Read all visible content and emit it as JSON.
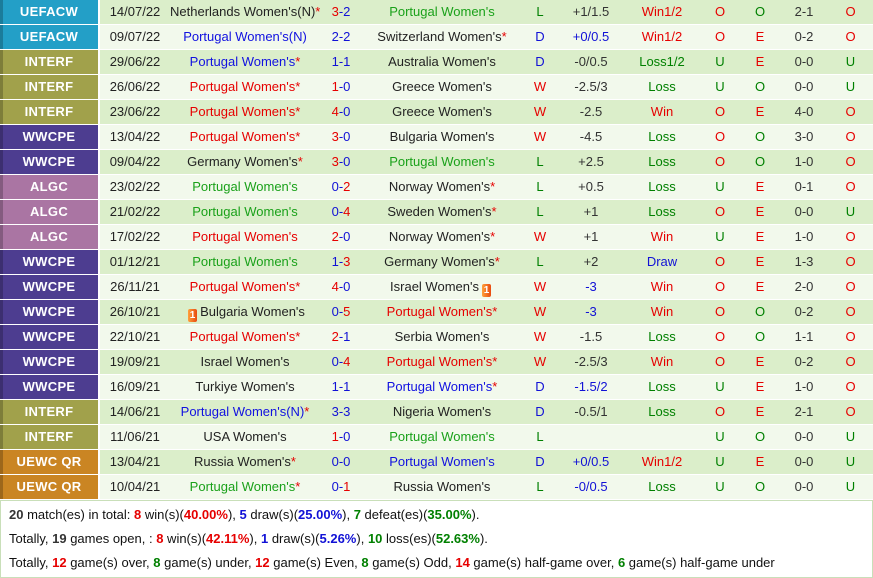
{
  "competitions": {
    "UEFACW": "#239fc7",
    "INTERF": "#a1a14b",
    "WWCPE": "#4d3d90",
    "ALGC": "#aa75a3",
    "UEWC QR": "#ca8523"
  },
  "accent_colors": {
    "win_red": "#e60000",
    "draw_blue": "#1111d6",
    "loss_green": "#008000"
  },
  "rows": [
    {
      "comp": "UEFACW",
      "date": "14/07/22",
      "home": {
        "name": "Netherlands Women's(N)",
        "star": true,
        "card": false,
        "color": "dark"
      },
      "fs": {
        "h": "3",
        "a": "2",
        "hc": "red",
        "ac": "blue"
      },
      "away": {
        "name": "Portugal Women's",
        "star": false,
        "card": false,
        "color": "green"
      },
      "wdl": {
        "t": "L",
        "c": "green"
      },
      "hcap": {
        "t": "+1/1.5",
        "c": "dark"
      },
      "hres": {
        "t": "Win1/2",
        "c": "red"
      },
      "ou": {
        "t": "O",
        "c": "red"
      },
      "oe": {
        "t": "O",
        "c": "green"
      },
      "ht": "2-1",
      "htou": {
        "t": "O",
        "c": "red"
      }
    },
    {
      "comp": "UEFACW",
      "date": "09/07/22",
      "home": {
        "name": "Portugal Women's(N)",
        "star": false,
        "card": false,
        "color": "blue"
      },
      "fs": {
        "h": "2",
        "a": "2",
        "hc": "blue",
        "ac": "blue"
      },
      "away": {
        "name": "Switzerland Women's",
        "star": true,
        "card": false,
        "color": "dark"
      },
      "wdl": {
        "t": "D",
        "c": "blue"
      },
      "hcap": {
        "t": "+0/0.5",
        "c": "blue"
      },
      "hres": {
        "t": "Win1/2",
        "c": "red"
      },
      "ou": {
        "t": "O",
        "c": "red"
      },
      "oe": {
        "t": "E",
        "c": "red"
      },
      "ht": "0-2",
      "htou": {
        "t": "O",
        "c": "red"
      }
    },
    {
      "comp": "INTERF",
      "date": "29/06/22",
      "home": {
        "name": "Portugal Women's",
        "star": true,
        "card": false,
        "color": "blue"
      },
      "fs": {
        "h": "1",
        "a": "1",
        "hc": "blue",
        "ac": "blue"
      },
      "away": {
        "name": "Australia Women's",
        "star": false,
        "card": false,
        "color": "dark"
      },
      "wdl": {
        "t": "D",
        "c": "blue"
      },
      "hcap": {
        "t": "-0/0.5",
        "c": "dark"
      },
      "hres": {
        "t": "Loss1/2",
        "c": "green"
      },
      "ou": {
        "t": "U",
        "c": "green"
      },
      "oe": {
        "t": "E",
        "c": "red"
      },
      "ht": "0-0",
      "htou": {
        "t": "U",
        "c": "green"
      }
    },
    {
      "comp": "INTERF",
      "date": "26/06/22",
      "home": {
        "name": "Portugal Women's",
        "star": true,
        "card": false,
        "color": "red"
      },
      "fs": {
        "h": "1",
        "a": "0",
        "hc": "red",
        "ac": "blue"
      },
      "away": {
        "name": "Greece Women's",
        "star": false,
        "card": false,
        "color": "dark"
      },
      "wdl": {
        "t": "W",
        "c": "red"
      },
      "hcap": {
        "t": "-2.5/3",
        "c": "dark"
      },
      "hres": {
        "t": "Loss",
        "c": "green"
      },
      "ou": {
        "t": "U",
        "c": "green"
      },
      "oe": {
        "t": "O",
        "c": "green"
      },
      "ht": "0-0",
      "htou": {
        "t": "U",
        "c": "green"
      }
    },
    {
      "comp": "INTERF",
      "date": "23/06/22",
      "home": {
        "name": "Portugal Women's",
        "star": true,
        "card": false,
        "color": "red"
      },
      "fs": {
        "h": "4",
        "a": "0",
        "hc": "red",
        "ac": "blue"
      },
      "away": {
        "name": "Greece Women's",
        "star": false,
        "card": false,
        "color": "dark"
      },
      "wdl": {
        "t": "W",
        "c": "red"
      },
      "hcap": {
        "t": "-2.5",
        "c": "dark"
      },
      "hres": {
        "t": "Win",
        "c": "red"
      },
      "ou": {
        "t": "O",
        "c": "red"
      },
      "oe": {
        "t": "E",
        "c": "red"
      },
      "ht": "4-0",
      "htou": {
        "t": "O",
        "c": "red"
      }
    },
    {
      "comp": "WWCPE",
      "date": "13/04/22",
      "home": {
        "name": "Portugal Women's",
        "star": true,
        "card": false,
        "color": "red"
      },
      "fs": {
        "h": "3",
        "a": "0",
        "hc": "red",
        "ac": "blue"
      },
      "away": {
        "name": "Bulgaria Women's",
        "star": false,
        "card": false,
        "color": "dark"
      },
      "wdl": {
        "t": "W",
        "c": "red"
      },
      "hcap": {
        "t": "-4.5",
        "c": "dark"
      },
      "hres": {
        "t": "Loss",
        "c": "green"
      },
      "ou": {
        "t": "O",
        "c": "red"
      },
      "oe": {
        "t": "O",
        "c": "green"
      },
      "ht": "3-0",
      "htou": {
        "t": "O",
        "c": "red"
      }
    },
    {
      "comp": "WWCPE",
      "date": "09/04/22",
      "home": {
        "name": "Germany Women's",
        "star": true,
        "card": false,
        "color": "dark"
      },
      "fs": {
        "h": "3",
        "a": "0",
        "hc": "red",
        "ac": "blue"
      },
      "away": {
        "name": "Portugal Women's",
        "star": false,
        "card": false,
        "color": "green"
      },
      "wdl": {
        "t": "L",
        "c": "green"
      },
      "hcap": {
        "t": "+2.5",
        "c": "dark"
      },
      "hres": {
        "t": "Loss",
        "c": "green"
      },
      "ou": {
        "t": "O",
        "c": "red"
      },
      "oe": {
        "t": "O",
        "c": "green"
      },
      "ht": "1-0",
      "htou": {
        "t": "O",
        "c": "red"
      }
    },
    {
      "comp": "ALGC",
      "date": "23/02/22",
      "home": {
        "name": "Portugal Women's",
        "star": false,
        "card": false,
        "color": "green"
      },
      "fs": {
        "h": "0",
        "a": "2",
        "hc": "blue",
        "ac": "red"
      },
      "away": {
        "name": "Norway Women's",
        "star": true,
        "card": false,
        "color": "dark"
      },
      "wdl": {
        "t": "L",
        "c": "green"
      },
      "hcap": {
        "t": "+0.5",
        "c": "dark"
      },
      "hres": {
        "t": "Loss",
        "c": "green"
      },
      "ou": {
        "t": "U",
        "c": "green"
      },
      "oe": {
        "t": "E",
        "c": "red"
      },
      "ht": "0-1",
      "htou": {
        "t": "O",
        "c": "red"
      }
    },
    {
      "comp": "ALGC",
      "date": "21/02/22",
      "home": {
        "name": "Portugal Women's",
        "star": false,
        "card": false,
        "color": "green"
      },
      "fs": {
        "h": "0",
        "a": "4",
        "hc": "blue",
        "ac": "red"
      },
      "away": {
        "name": "Sweden Women's",
        "star": true,
        "card": false,
        "color": "dark"
      },
      "wdl": {
        "t": "L",
        "c": "green"
      },
      "hcap": {
        "t": "+1",
        "c": "dark"
      },
      "hres": {
        "t": "Loss",
        "c": "green"
      },
      "ou": {
        "t": "O",
        "c": "red"
      },
      "oe": {
        "t": "E",
        "c": "red"
      },
      "ht": "0-0",
      "htou": {
        "t": "U",
        "c": "green"
      }
    },
    {
      "comp": "ALGC",
      "date": "17/02/22",
      "home": {
        "name": "Portugal Women's",
        "star": false,
        "card": false,
        "color": "red"
      },
      "fs": {
        "h": "2",
        "a": "0",
        "hc": "red",
        "ac": "blue"
      },
      "away": {
        "name": "Norway Women's",
        "star": true,
        "card": false,
        "color": "dark"
      },
      "wdl": {
        "t": "W",
        "c": "red"
      },
      "hcap": {
        "t": "+1",
        "c": "dark"
      },
      "hres": {
        "t": "Win",
        "c": "red"
      },
      "ou": {
        "t": "U",
        "c": "green"
      },
      "oe": {
        "t": "E",
        "c": "red"
      },
      "ht": "1-0",
      "htou": {
        "t": "O",
        "c": "red"
      }
    },
    {
      "comp": "WWCPE",
      "date": "01/12/21",
      "home": {
        "name": "Portugal Women's",
        "star": false,
        "card": false,
        "color": "green"
      },
      "fs": {
        "h": "1",
        "a": "3",
        "hc": "blue",
        "ac": "red"
      },
      "away": {
        "name": "Germany Women's",
        "star": true,
        "card": false,
        "color": "dark"
      },
      "wdl": {
        "t": "L",
        "c": "green"
      },
      "hcap": {
        "t": "+2",
        "c": "dark"
      },
      "hres": {
        "t": "Draw",
        "c": "blue"
      },
      "ou": {
        "t": "O",
        "c": "red"
      },
      "oe": {
        "t": "E",
        "c": "red"
      },
      "ht": "1-3",
      "htou": {
        "t": "O",
        "c": "red"
      }
    },
    {
      "comp": "WWCPE",
      "date": "26/11/21",
      "home": {
        "name": "Portugal Women's",
        "star": true,
        "card": false,
        "color": "red"
      },
      "fs": {
        "h": "4",
        "a": "0",
        "hc": "red",
        "ac": "blue"
      },
      "away": {
        "name": "Israel Women's",
        "star": false,
        "card": true,
        "color": "dark"
      },
      "wdl": {
        "t": "W",
        "c": "red"
      },
      "hcap": {
        "t": "-3",
        "c": "blue"
      },
      "hres": {
        "t": "Win",
        "c": "red"
      },
      "ou": {
        "t": "O",
        "c": "red"
      },
      "oe": {
        "t": "E",
        "c": "red"
      },
      "ht": "2-0",
      "htou": {
        "t": "O",
        "c": "red"
      }
    },
    {
      "comp": "WWCPE",
      "date": "26/10/21",
      "home": {
        "name": "Bulgaria Women's",
        "star": false,
        "card": true,
        "color": "dark"
      },
      "fs": {
        "h": "0",
        "a": "5",
        "hc": "blue",
        "ac": "red"
      },
      "away": {
        "name": "Portugal Women's",
        "star": true,
        "card": false,
        "color": "red"
      },
      "wdl": {
        "t": "W",
        "c": "red"
      },
      "hcap": {
        "t": "-3",
        "c": "blue"
      },
      "hres": {
        "t": "Win",
        "c": "red"
      },
      "ou": {
        "t": "O",
        "c": "red"
      },
      "oe": {
        "t": "O",
        "c": "green"
      },
      "ht": "0-2",
      "htou": {
        "t": "O",
        "c": "red"
      }
    },
    {
      "comp": "WWCPE",
      "date": "22/10/21",
      "home": {
        "name": "Portugal Women's",
        "star": true,
        "card": false,
        "color": "red"
      },
      "fs": {
        "h": "2",
        "a": "1",
        "hc": "red",
        "ac": "blue"
      },
      "away": {
        "name": "Serbia Women's",
        "star": false,
        "card": false,
        "color": "dark"
      },
      "wdl": {
        "t": "W",
        "c": "red"
      },
      "hcap": {
        "t": "-1.5",
        "c": "dark"
      },
      "hres": {
        "t": "Loss",
        "c": "green"
      },
      "ou": {
        "t": "O",
        "c": "red"
      },
      "oe": {
        "t": "O",
        "c": "green"
      },
      "ht": "1-1",
      "htou": {
        "t": "O",
        "c": "red"
      }
    },
    {
      "comp": "WWCPE",
      "date": "19/09/21",
      "home": {
        "name": "Israel Women's",
        "star": false,
        "card": false,
        "color": "dark"
      },
      "fs": {
        "h": "0",
        "a": "4",
        "hc": "blue",
        "ac": "red"
      },
      "away": {
        "name": "Portugal Women's",
        "star": true,
        "card": false,
        "color": "red"
      },
      "wdl": {
        "t": "W",
        "c": "red"
      },
      "hcap": {
        "t": "-2.5/3",
        "c": "dark"
      },
      "hres": {
        "t": "Win",
        "c": "red"
      },
      "ou": {
        "t": "O",
        "c": "red"
      },
      "oe": {
        "t": "E",
        "c": "red"
      },
      "ht": "0-2",
      "htou": {
        "t": "O",
        "c": "red"
      }
    },
    {
      "comp": "WWCPE",
      "date": "16/09/21",
      "home": {
        "name": "Turkiye Women's",
        "star": false,
        "card": false,
        "color": "dark"
      },
      "fs": {
        "h": "1",
        "a": "1",
        "hc": "blue",
        "ac": "blue"
      },
      "away": {
        "name": "Portugal Women's",
        "star": true,
        "card": false,
        "color": "blue"
      },
      "wdl": {
        "t": "D",
        "c": "blue"
      },
      "hcap": {
        "t": "-1.5/2",
        "c": "blue"
      },
      "hres": {
        "t": "Loss",
        "c": "green"
      },
      "ou": {
        "t": "U",
        "c": "green"
      },
      "oe": {
        "t": "E",
        "c": "red"
      },
      "ht": "1-0",
      "htou": {
        "t": "O",
        "c": "red"
      }
    },
    {
      "comp": "INTERF",
      "date": "14/06/21",
      "home": {
        "name": "Portugal Women's(N)",
        "star": true,
        "card": false,
        "color": "blue"
      },
      "fs": {
        "h": "3",
        "a": "3",
        "hc": "blue",
        "ac": "blue"
      },
      "away": {
        "name": "Nigeria Women's",
        "star": false,
        "card": false,
        "color": "dark"
      },
      "wdl": {
        "t": "D",
        "c": "blue"
      },
      "hcap": {
        "t": "-0.5/1",
        "c": "dark"
      },
      "hres": {
        "t": "Loss",
        "c": "green"
      },
      "ou": {
        "t": "O",
        "c": "red"
      },
      "oe": {
        "t": "E",
        "c": "red"
      },
      "ht": "2-1",
      "htou": {
        "t": "O",
        "c": "red"
      }
    },
    {
      "comp": "INTERF",
      "date": "11/06/21",
      "home": {
        "name": "USA Women's",
        "star": false,
        "card": false,
        "color": "dark"
      },
      "fs": {
        "h": "1",
        "a": "0",
        "hc": "red",
        "ac": "blue"
      },
      "away": {
        "name": "Portugal Women's",
        "star": false,
        "card": false,
        "color": "green"
      },
      "wdl": {
        "t": "L",
        "c": "green"
      },
      "hcap": {
        "t": "",
        "c": "dark"
      },
      "hres": {
        "t": "",
        "c": "dark"
      },
      "ou": {
        "t": "U",
        "c": "green"
      },
      "oe": {
        "t": "O",
        "c": "green"
      },
      "ht": "0-0",
      "htou": {
        "t": "U",
        "c": "green"
      }
    },
    {
      "comp": "UEWC QR",
      "date": "13/04/21",
      "home": {
        "name": "Russia Women's",
        "star": true,
        "card": false,
        "color": "dark"
      },
      "fs": {
        "h": "0",
        "a": "0",
        "hc": "blue",
        "ac": "blue"
      },
      "away": {
        "name": "Portugal Women's",
        "star": false,
        "card": false,
        "color": "blue"
      },
      "wdl": {
        "t": "D",
        "c": "blue"
      },
      "hcap": {
        "t": "+0/0.5",
        "c": "blue"
      },
      "hres": {
        "t": "Win1/2",
        "c": "red"
      },
      "ou": {
        "t": "U",
        "c": "green"
      },
      "oe": {
        "t": "E",
        "c": "red"
      },
      "ht": "0-0",
      "htou": {
        "t": "U",
        "c": "green"
      }
    },
    {
      "comp": "UEWC QR",
      "date": "10/04/21",
      "home": {
        "name": "Portugal Women's",
        "star": true,
        "card": false,
        "color": "green"
      },
      "fs": {
        "h": "0",
        "a": "1",
        "hc": "blue",
        "ac": "red"
      },
      "away": {
        "name": "Russia Women's",
        "star": false,
        "card": false,
        "color": "dark"
      },
      "wdl": {
        "t": "L",
        "c": "green"
      },
      "hcap": {
        "t": "-0/0.5",
        "c": "blue"
      },
      "hres": {
        "t": "Loss",
        "c": "green"
      },
      "ou": {
        "t": "U",
        "c": "green"
      },
      "oe": {
        "t": "O",
        "c": "green"
      },
      "ht": "0-0",
      "htou": {
        "t": "U",
        "c": "green"
      }
    }
  ],
  "card_icon_label": "1",
  "summary": {
    "line1": [
      {
        "t": "20",
        "c": "dark",
        "b": true
      },
      {
        "t": " match(es) in total: ",
        "c": "plain"
      },
      {
        "t": "8",
        "c": "red",
        "b": true
      },
      {
        "t": " win(s)(",
        "c": "plain"
      },
      {
        "t": "40.00%",
        "c": "red",
        "b": true
      },
      {
        "t": "), ",
        "c": "plain"
      },
      {
        "t": "5",
        "c": "blue",
        "b": true
      },
      {
        "t": " draw(s)(",
        "c": "plain"
      },
      {
        "t": "25.00%",
        "c": "blue",
        "b": true
      },
      {
        "t": "), ",
        "c": "plain"
      },
      {
        "t": "7",
        "c": "green",
        "b": true
      },
      {
        "t": " defeat(es)(",
        "c": "plain"
      },
      {
        "t": "35.00%",
        "c": "green",
        "b": true
      },
      {
        "t": ").",
        "c": "plain"
      }
    ],
    "line2": [
      {
        "t": "Totally, ",
        "c": "plain"
      },
      {
        "t": "19",
        "c": "dark",
        "b": true
      },
      {
        "t": " games open, : ",
        "c": "plain"
      },
      {
        "t": "8",
        "c": "red",
        "b": true
      },
      {
        "t": " win(s)(",
        "c": "plain"
      },
      {
        "t": "42.11%",
        "c": "red",
        "b": true
      },
      {
        "t": "), ",
        "c": "plain"
      },
      {
        "t": "1",
        "c": "blue",
        "b": true
      },
      {
        "t": " draw(s)(",
        "c": "plain"
      },
      {
        "t": "5.26%",
        "c": "blue",
        "b": true
      },
      {
        "t": "), ",
        "c": "plain"
      },
      {
        "t": "10",
        "c": "green",
        "b": true
      },
      {
        "t": " loss(es)(",
        "c": "plain"
      },
      {
        "t": "52.63%",
        "c": "green",
        "b": true
      },
      {
        "t": ").",
        "c": "plain"
      }
    ],
    "line3": [
      {
        "t": "Totally, ",
        "c": "plain"
      },
      {
        "t": "12",
        "c": "red",
        "b": true
      },
      {
        "t": " game(s) over, ",
        "c": "plain"
      },
      {
        "t": "8",
        "c": "green",
        "b": true
      },
      {
        "t": " game(s) under, ",
        "c": "plain"
      },
      {
        "t": "12",
        "c": "red",
        "b": true
      },
      {
        "t": " game(s) Even, ",
        "c": "plain"
      },
      {
        "t": "8",
        "c": "green",
        "b": true
      },
      {
        "t": " game(s) Odd, ",
        "c": "plain"
      },
      {
        "t": "14",
        "c": "red",
        "b": true
      },
      {
        "t": " game(s) half-game over, ",
        "c": "plain"
      },
      {
        "t": "6",
        "c": "green",
        "b": true
      },
      {
        "t": " game(s) half-game under",
        "c": "plain"
      }
    ]
  }
}
